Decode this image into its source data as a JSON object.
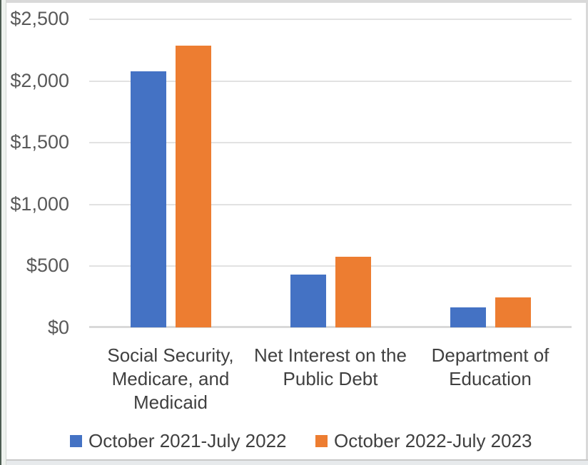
{
  "chart_data": {
    "type": "bar",
    "title": "",
    "categories": [
      "Social Security, Medicare, and Medicaid",
      "Net Interest on the Public Debt",
      "Department of Education"
    ],
    "category_lines": [
      [
        "Social Security,",
        "Medicare, and",
        "Medicaid"
      ],
      [
        "Net Interest on the",
        "Public Debt"
      ],
      [
        "Department of",
        "Education"
      ]
    ],
    "series": [
      {
        "name": "October 2021-July 2022",
        "color": "#4472C4",
        "values": [
          2070,
          425,
          160
        ]
      },
      {
        "name": "October 2022-July 2023",
        "color": "#ED7D31",
        "values": [
          2280,
          570,
          245
        ]
      }
    ],
    "y_axis": {
      "min": 0,
      "max": 2500,
      "tick_interval": 500,
      "tick_labels": [
        "$2,500",
        "$2,000",
        "$1,500",
        "$1,000",
        "$500",
        "$0"
      ]
    },
    "grid": true,
    "legend_position": "bottom"
  },
  "legend": {
    "items": [
      {
        "label": "October 2021-July 2022",
        "color": "#4472C4"
      },
      {
        "label": "October 2022-July 2023",
        "color": "#ED7D31"
      }
    ]
  },
  "colors": {
    "series_blue": "#4472C4",
    "series_orange": "#ED7D31",
    "gridline": "#e2e2e2",
    "axis_line": "#d9d9d9",
    "axis_text": "#595959",
    "label_text": "#404040"
  }
}
